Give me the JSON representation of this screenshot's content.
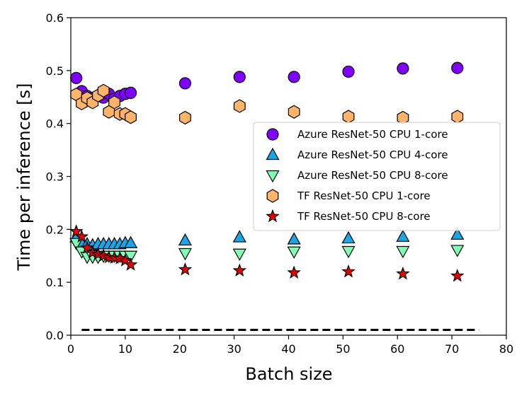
{
  "chart_data": {
    "type": "scatter",
    "title": "",
    "xlabel": "Batch size",
    "ylabel": "Time per inference [s]",
    "xlim": [
      0,
      80
    ],
    "ylim": [
      0.0,
      0.6
    ],
    "xticks": [
      0,
      10,
      20,
      30,
      40,
      50,
      60,
      70,
      80
    ],
    "xtick_labels": [
      "0",
      "10",
      "20",
      "30",
      "40",
      "50",
      "60",
      "70",
      "80"
    ],
    "yticks": [
      0.0,
      0.1,
      0.2,
      0.3,
      0.4,
      0.5,
      0.6
    ],
    "ytick_labels": [
      "0.0",
      "0.1",
      "0.2",
      "0.3",
      "0.4",
      "0.5",
      "0.6"
    ],
    "grid": false,
    "legend_position": "center-right",
    "series": [
      {
        "name": "Azure ResNet-50 CPU 1-core",
        "marker": "circle",
        "color": "#8000ff",
        "x": [
          1,
          2,
          3,
          4,
          5,
          6,
          7,
          8,
          9,
          10,
          11,
          21,
          31,
          41,
          51,
          61,
          71
        ],
        "y": [
          0.486,
          0.461,
          0.452,
          0.448,
          0.452,
          0.449,
          0.456,
          0.447,
          0.452,
          0.456,
          0.458,
          0.476,
          0.488,
          0.488,
          0.498,
          0.504,
          0.505
        ]
      },
      {
        "name": "Azure ResNet-50 CPU 4-core",
        "marker": "triangle-up",
        "color": "#19a6e6",
        "x": [
          1,
          2,
          3,
          4,
          5,
          6,
          7,
          8,
          9,
          10,
          11,
          21,
          31,
          41,
          51,
          61,
          71
        ],
        "y": [
          0.185,
          0.174,
          0.172,
          0.17,
          0.172,
          0.172,
          0.172,
          0.172,
          0.172,
          0.174,
          0.174,
          0.179,
          0.185,
          0.181,
          0.183,
          0.186,
          0.19
        ]
      },
      {
        "name": "Azure ResNet-50 CPU 8-core",
        "marker": "triangle-down",
        "color": "#80ffb4",
        "x": [
          1,
          2,
          3,
          4,
          5,
          6,
          7,
          8,
          9,
          10,
          11,
          21,
          31,
          41,
          51,
          61,
          71
        ],
        "y": [
          0.174,
          0.158,
          0.148,
          0.148,
          0.148,
          0.15,
          0.15,
          0.15,
          0.15,
          0.15,
          0.15,
          0.155,
          0.154,
          0.158,
          0.159,
          0.159,
          0.161
        ]
      },
      {
        "name": "TF ResNet-50 CPU 1-core",
        "marker": "hexagon",
        "color": "#ffb469",
        "x": [
          1,
          2,
          3,
          4,
          5,
          6,
          7,
          8,
          9,
          10,
          11,
          21,
          31,
          41,
          51,
          61,
          71
        ],
        "y": [
          0.455,
          0.438,
          0.448,
          0.44,
          0.453,
          0.462,
          0.422,
          0.44,
          0.418,
          0.418,
          0.412,
          0.411,
          0.433,
          0.422,
          0.413,
          0.411,
          0.413
        ]
      },
      {
        "name": "TF ResNet-50 CPU 8-core",
        "marker": "star",
        "color": "#e60000",
        "x": [
          1,
          2,
          3,
          4,
          5,
          6,
          7,
          8,
          9,
          10,
          11,
          21,
          31,
          41,
          51,
          61,
          71
        ],
        "y": [
          0.196,
          0.186,
          0.165,
          0.156,
          0.153,
          0.15,
          0.147,
          0.146,
          0.145,
          0.141,
          0.133,
          0.124,
          0.122,
          0.118,
          0.12,
          0.116,
          0.112
        ]
      }
    ],
    "reference_line": {
      "style": "dashed",
      "color": "#000000",
      "x": [
        2,
        75
      ],
      "y": [
        0.01,
        0.01
      ]
    }
  }
}
